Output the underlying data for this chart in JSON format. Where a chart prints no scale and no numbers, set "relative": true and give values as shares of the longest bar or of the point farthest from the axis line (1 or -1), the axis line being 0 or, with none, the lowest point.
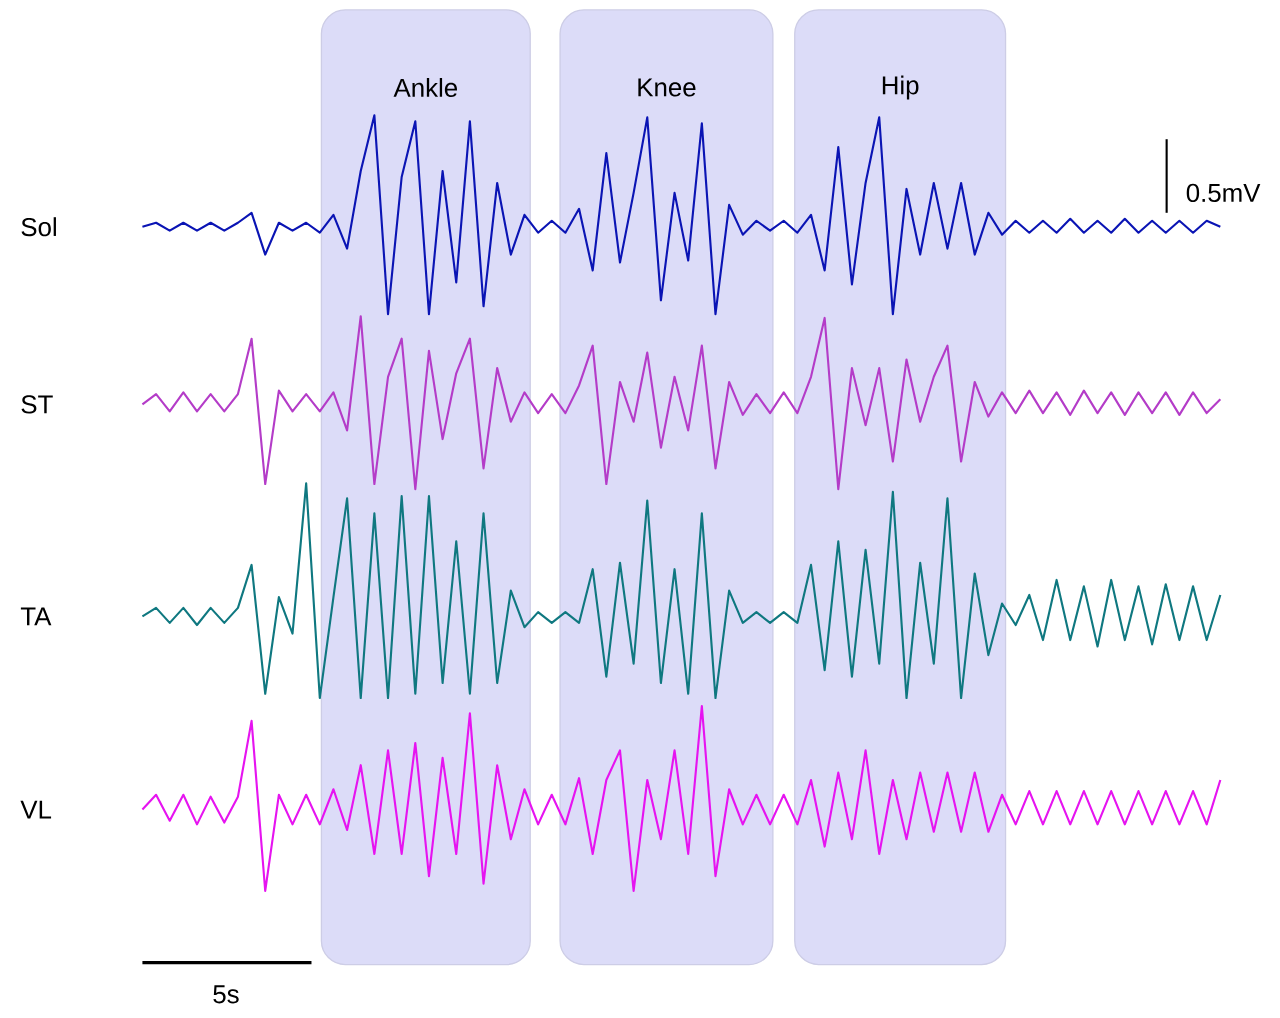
{
  "chart_data": [
    {
      "type": "line",
      "relative": true,
      "categories": [
        null,
        null,
        null,
        null,
        null,
        null,
        null,
        null,
        null,
        null,
        null,
        null,
        null,
        null,
        null,
        null,
        null,
        null,
        null,
        null,
        null,
        null,
        null,
        null,
        null,
        null,
        null,
        null,
        null,
        null,
        null,
        null,
        null,
        null,
        null,
        null,
        null,
        null,
        null,
        null,
        null,
        null,
        null,
        null,
        null,
        null,
        null,
        null,
        null,
        null,
        null,
        null,
        null,
        null,
        null,
        null,
        null,
        null,
        null,
        null,
        null,
        null,
        null,
        null,
        null,
        null,
        null,
        null,
        null,
        null,
        null,
        null,
        null,
        null,
        null,
        null,
        null,
        null,
        null,
        null
      ],
      "annotations": [
        "Ankle",
        "Knee",
        "Hip",
        "0.5mV"
      ],
      "series": [
        {
          "name": "Sol",
          "color": "#0a14b4",
          "values": [
            0.44,
            0.46,
            0.42,
            0.46,
            0.42,
            0.46,
            0.42,
            0.46,
            0.51,
            0.3,
            0.46,
            0.42,
            0.46,
            0.41,
            0.5,
            0.33,
            0.72,
            1,
            0,
            0.69,
            0.97,
            0,
            0.72,
            0.16,
            0.97,
            0.04,
            0.66,
            0.3,
            0.5,
            0.41,
            0.47,
            0.41,
            0.53,
            0.22,
            0.81,
            0.26,
            0.61,
            0.99,
            0.07,
            0.61,
            0.27,
            0.96,
            0,
            0.55,
            0.4,
            0.47,
            0.42,
            0.47,
            0.41,
            0.5,
            0.22,
            0.84,
            0.15,
            0.66,
            0.99,
            0,
            0.63,
            0.3,
            0.66,
            0.33,
            0.66,
            0.3,
            0.51,
            0.4,
            0.47,
            0.41,
            0.47,
            0.41,
            0.48,
            0.41,
            0.47,
            0.41,
            0.48,
            0.41,
            0.47,
            0.41,
            0.47,
            0.41,
            0.47,
            0.44
          ]
        }
      ]
    },
    {
      "type": "line",
      "relative": true,
      "categories": [
        null,
        null,
        null,
        null,
        null,
        null,
        null,
        null,
        null,
        null,
        null,
        null,
        null,
        null,
        null,
        null,
        null,
        null,
        null,
        null,
        null,
        null,
        null,
        null,
        null,
        null,
        null,
        null,
        null,
        null,
        null,
        null,
        null,
        null,
        null,
        null,
        null,
        null,
        null,
        null,
        null,
        null,
        null,
        null,
        null,
        null,
        null,
        null,
        null,
        null,
        null,
        null,
        null,
        null,
        null,
        null,
        null,
        null,
        null,
        null,
        null,
        null,
        null,
        null,
        null,
        null,
        null,
        null,
        null,
        null,
        null,
        null,
        null,
        null,
        null,
        null,
        null,
        null,
        null,
        null
      ],
      "series": [
        {
          "name": "ST",
          "color": "#b43cc8",
          "values": [
            0.49,
            0.55,
            0.45,
            0.56,
            0.45,
            0.55,
            0.45,
            0.55,
            0.87,
            0.03,
            0.57,
            0.45,
            0.55,
            0.45,
            0.56,
            0.34,
            1,
            0.03,
            0.65,
            0.87,
            0,
            0.8,
            0.29,
            0.67,
            0.87,
            0.12,
            0.7,
            0.39,
            0.56,
            0.44,
            0.55,
            0.44,
            0.6,
            0.83,
            0.03,
            0.62,
            0.39,
            0.79,
            0.24,
            0.65,
            0.34,
            0.83,
            0.12,
            0.62,
            0.43,
            0.55,
            0.44,
            0.56,
            0.44,
            0.65,
            0.99,
            0,
            0.7,
            0.37,
            0.7,
            0.16,
            0.75,
            0.39,
            0.65,
            0.83,
            0.16,
            0.62,
            0.42,
            0.56,
            0.44,
            0.57,
            0.44,
            0.56,
            0.43,
            0.57,
            0.44,
            0.56,
            0.43,
            0.56,
            0.44,
            0.56,
            0.43,
            0.56,
            0.44,
            0.52
          ]
        }
      ]
    },
    {
      "type": "line",
      "relative": true,
      "categories": [
        null,
        null,
        null,
        null,
        null,
        null,
        null,
        null,
        null,
        null,
        null,
        null,
        null,
        null,
        null,
        null,
        null,
        null,
        null,
        null,
        null,
        null,
        null,
        null,
        null,
        null,
        null,
        null,
        null,
        null,
        null,
        null,
        null,
        null,
        null,
        null,
        null,
        null,
        null,
        null,
        null,
        null,
        null,
        null,
        null,
        null,
        null,
        null,
        null,
        null,
        null,
        null,
        null,
        null,
        null,
        null,
        null,
        null,
        null,
        null,
        null,
        null,
        null,
        null,
        null,
        null,
        null,
        null,
        null,
        null,
        null,
        null,
        null,
        null,
        null,
        null,
        null,
        null,
        null,
        null
      ],
      "series": [
        {
          "name": "TA",
          "color": "#0f7880",
          "values": [
            0.38,
            0.42,
            0.35,
            0.42,
            0.34,
            0.42,
            0.35,
            0.42,
            0.62,
            0.02,
            0.47,
            0.3,
            1,
            0,
            0.47,
            0.93,
            0,
            0.86,
            0,
            0.94,
            0.02,
            0.94,
            0.07,
            0.73,
            0.02,
            0.86,
            0.07,
            0.5,
            0.33,
            0.4,
            0.35,
            0.4,
            0.35,
            0.6,
            0.1,
            0.63,
            0.16,
            0.92,
            0.07,
            0.6,
            0.02,
            0.86,
            0,
            0.5,
            0.35,
            0.4,
            0.35,
            0.4,
            0.35,
            0.62,
            0.13,
            0.73,
            0.1,
            0.69,
            0.16,
            0.96,
            0,
            0.63,
            0.16,
            0.93,
            0,
            0.58,
            0.2,
            0.44,
            0.34,
            0.48,
            0.27,
            0.55,
            0.27,
            0.52,
            0.24,
            0.55,
            0.27,
            0.52,
            0.25,
            0.53,
            0.27,
            0.52,
            0.27,
            0.48
          ]
        }
      ]
    },
    {
      "type": "line",
      "relative": true,
      "categories": [
        null,
        null,
        null,
        null,
        null,
        null,
        null,
        null,
        null,
        null,
        null,
        null,
        null,
        null,
        null,
        null,
        null,
        null,
        null,
        null,
        null,
        null,
        null,
        null,
        null,
        null,
        null,
        null,
        null,
        null,
        null,
        null,
        null,
        null,
        null,
        null,
        null,
        null,
        null,
        null,
        null,
        null,
        null,
        null,
        null,
        null,
        null,
        null,
        null,
        null,
        null,
        null,
        null,
        null,
        null,
        null,
        null,
        null,
        null,
        null,
        null,
        null,
        null,
        null,
        null,
        null,
        null,
        null,
        null,
        null,
        null,
        null,
        null,
        null,
        null,
        null,
        null,
        null,
        null,
        null
      ],
      "annotations": [
        "5s"
      ],
      "series": [
        {
          "name": "VL",
          "color": "#e614f0",
          "values": [
            0.44,
            0.52,
            0.38,
            0.52,
            0.36,
            0.51,
            0.37,
            0.51,
            0.92,
            0,
            0.52,
            0.36,
            0.52,
            0.36,
            0.55,
            0.33,
            0.68,
            0.2,
            0.76,
            0.2,
            0.8,
            0.08,
            0.72,
            0.2,
            0.96,
            0.04,
            0.68,
            0.28,
            0.55,
            0.36,
            0.52,
            0.36,
            0.61,
            0.2,
            0.6,
            0.76,
            0,
            0.6,
            0.28,
            0.76,
            0.2,
            1,
            0.08,
            0.55,
            0.36,
            0.52,
            0.36,
            0.52,
            0.36,
            0.6,
            0.24,
            0.64,
            0.28,
            0.76,
            0.2,
            0.6,
            0.28,
            0.64,
            0.32,
            0.64,
            0.32,
            0.64,
            0.32,
            0.52,
            0.36,
            0.54,
            0.36,
            0.54,
            0.36,
            0.54,
            0.36,
            0.54,
            0.36,
            0.54,
            0.36,
            0.54,
            0.36,
            0.54,
            0.36,
            0.6
          ]
        }
      ]
    }
  ]
}
